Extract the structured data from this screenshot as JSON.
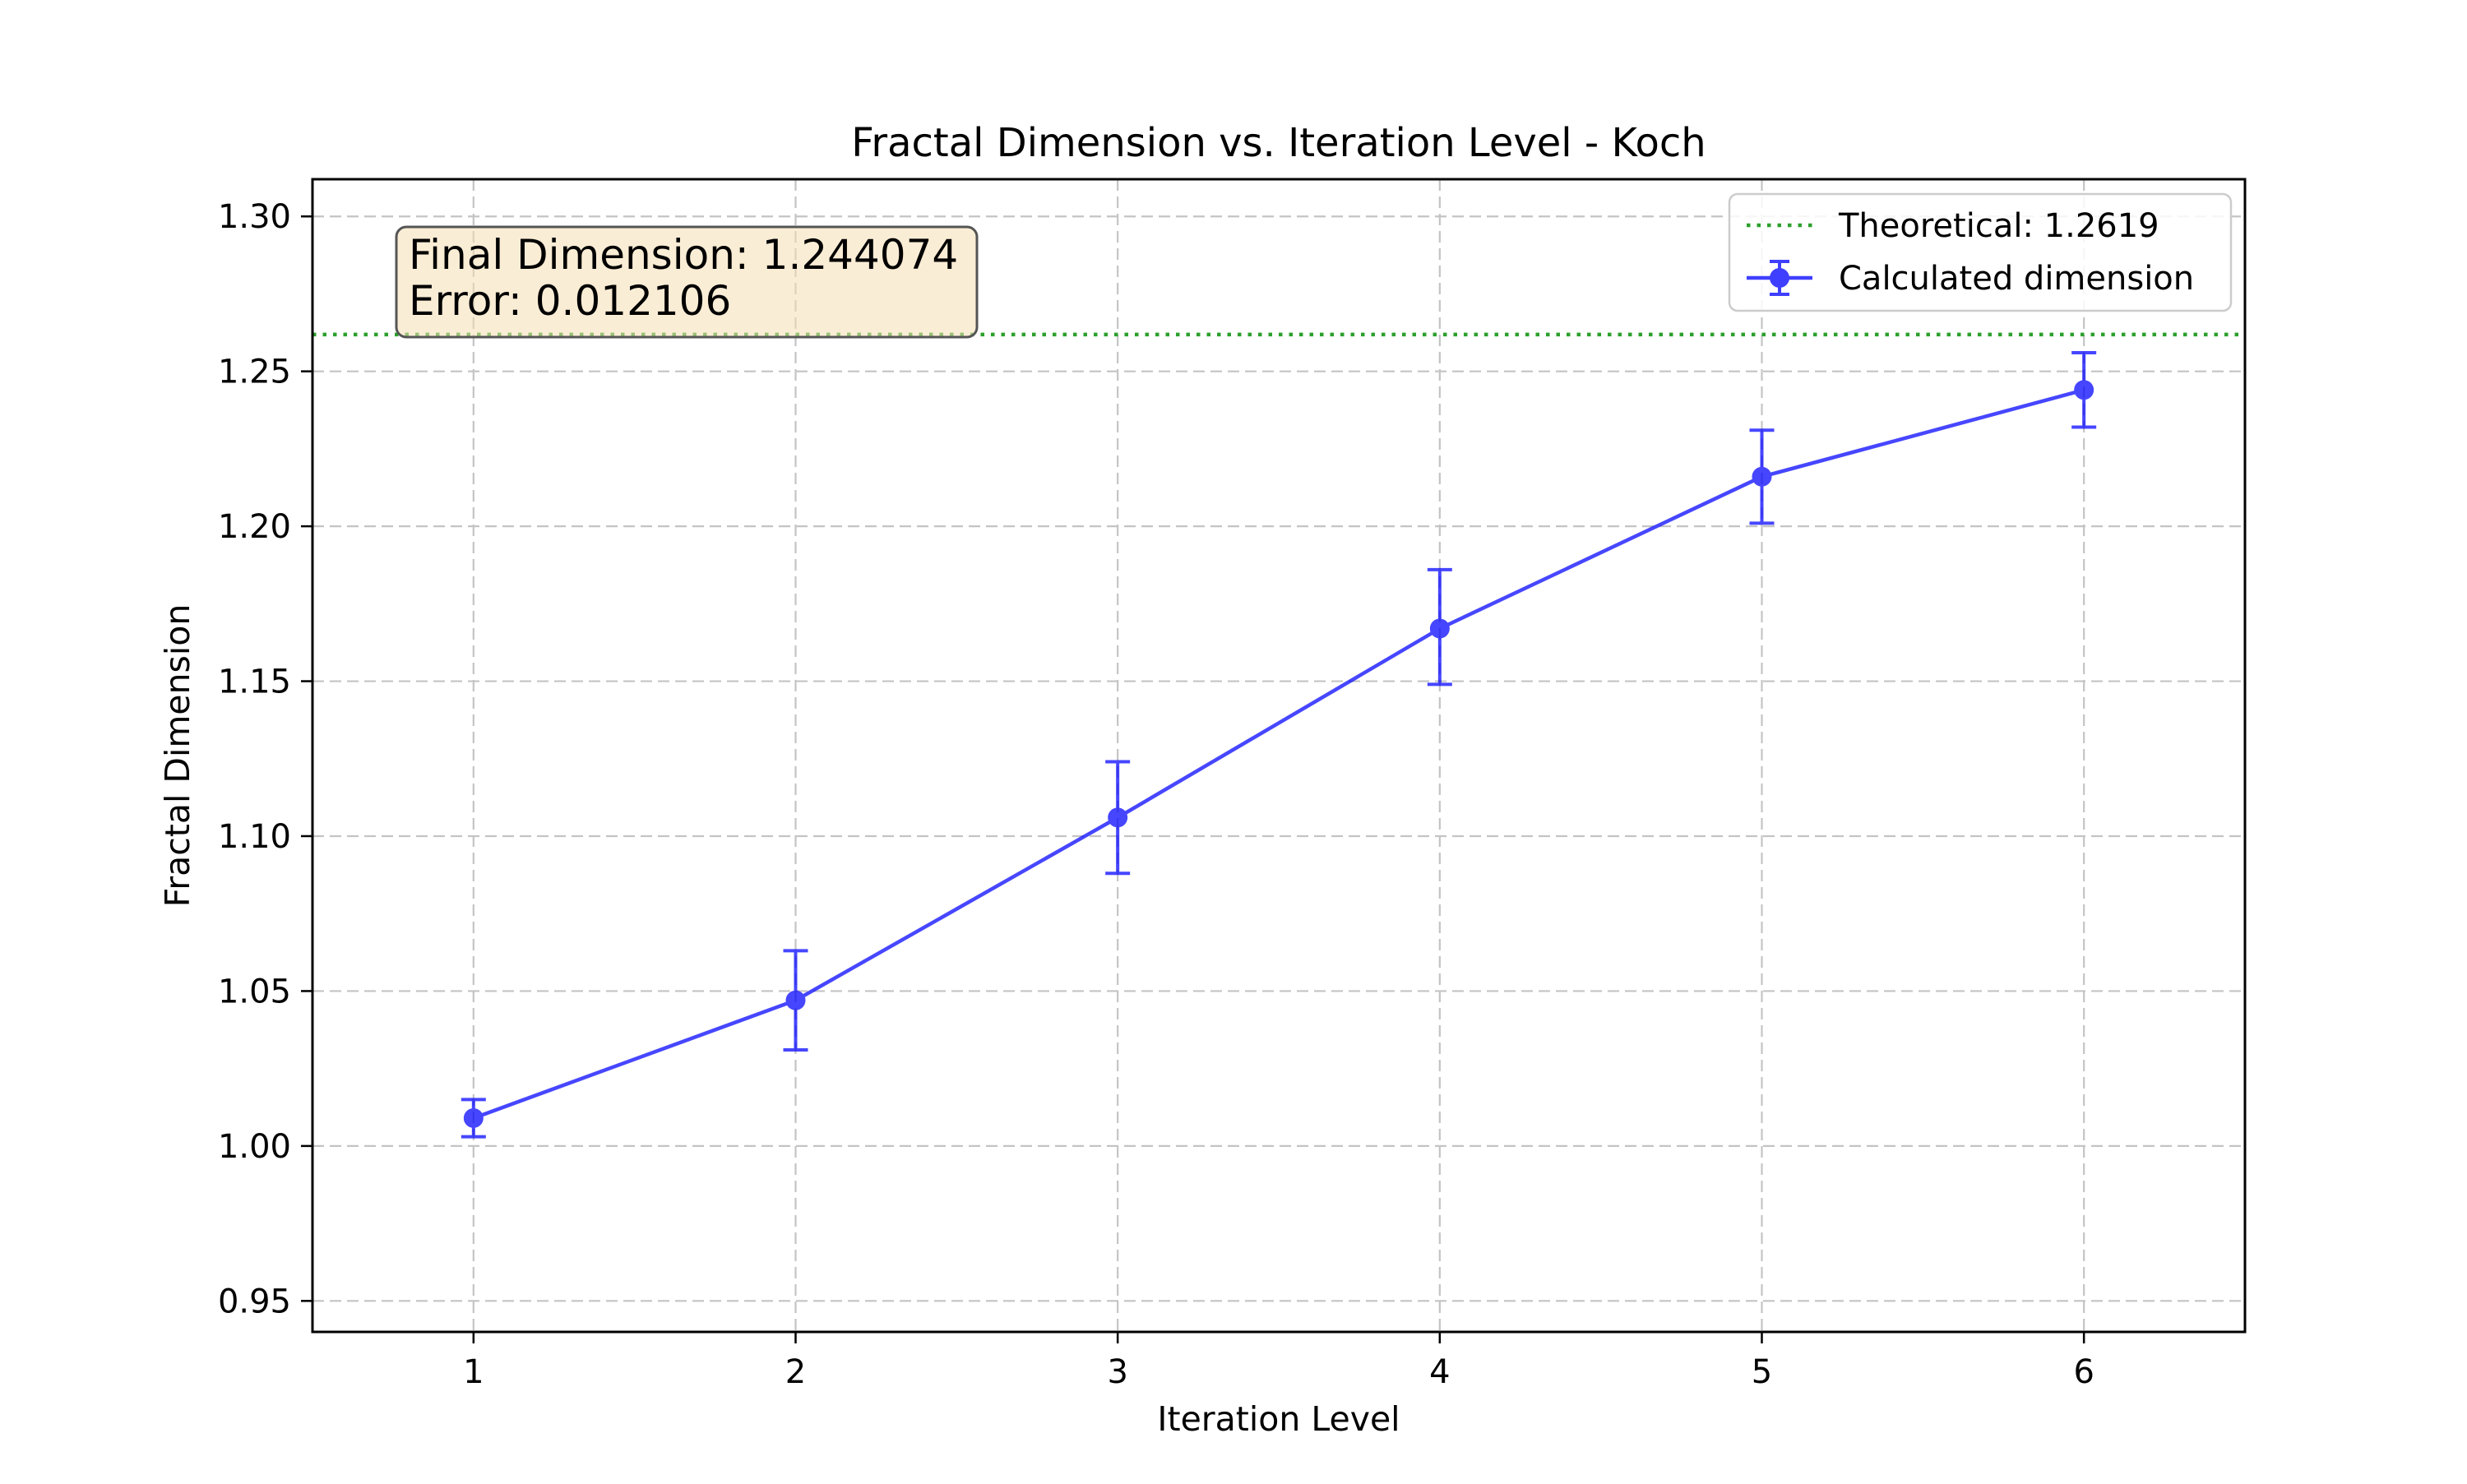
{
  "chart_data": {
    "type": "line",
    "title": "Fractal Dimension vs. Iteration Level - Koch",
    "xlabel": "Iteration Level",
    "ylabel": "Fractal Dimension",
    "xlim": [
      0.5,
      6.5
    ],
    "ylim": [
      0.94,
      1.312
    ],
    "xticks": [
      1,
      2,
      3,
      4,
      5,
      6
    ],
    "xtick_labels": [
      "1",
      "2",
      "3",
      "4",
      "5",
      "6"
    ],
    "yticks": [
      0.95,
      1.0,
      1.05,
      1.1,
      1.15,
      1.2,
      1.25,
      1.3
    ],
    "ytick_labels": [
      "0.95",
      "1.00",
      "1.05",
      "1.10",
      "1.15",
      "1.20",
      "1.25",
      "1.30"
    ],
    "grid": true,
    "legend_position": "top-right",
    "series": [
      {
        "name": "Calculated dimension",
        "color": "#0000ff",
        "x": [
          1,
          2,
          3,
          4,
          5,
          6
        ],
        "y": [
          1.009,
          1.047,
          1.106,
          1.167,
          1.216,
          1.244
        ],
        "yerr_low": [
          1.003,
          1.031,
          1.088,
          1.149,
          1.201,
          1.232
        ],
        "yerr_high": [
          1.015,
          1.063,
          1.124,
          1.186,
          1.231,
          1.256
        ]
      }
    ],
    "reference_lines": [
      {
        "name": "Theoretical: 1.2619",
        "y": 1.2619,
        "color": "#2ca02c",
        "style": "dotted"
      }
    ],
    "annotation": {
      "lines": [
        "Final Dimension: 1.244074",
        "Error: 0.012106"
      ],
      "background": "#f5deb3"
    }
  }
}
